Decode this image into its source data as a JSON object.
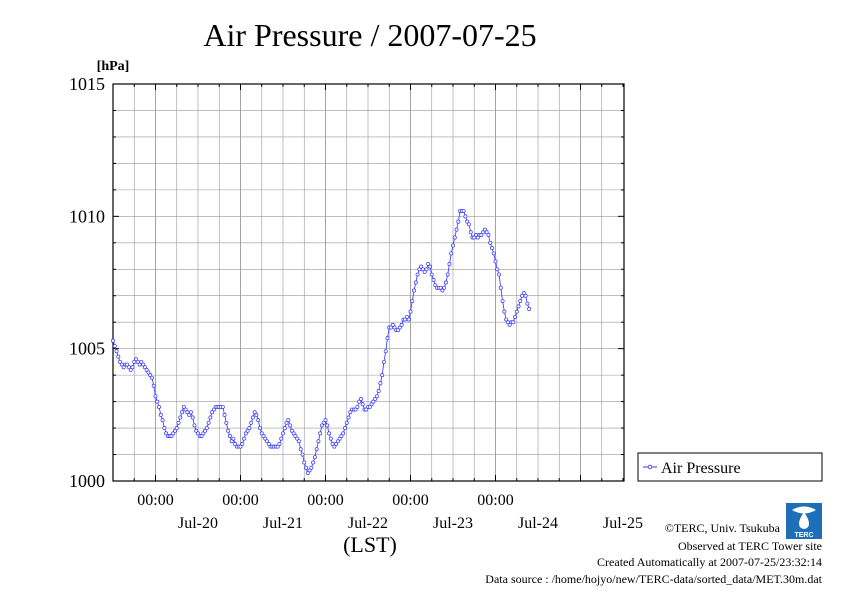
{
  "chart_data": {
    "type": "line",
    "title": "Air Pressure / 2007-07-25",
    "yunit": "[hPa]",
    "xlabel": "(LST)",
    "ylim": [
      1000,
      1015
    ],
    "y_ticks": [
      "1015",
      "1010",
      "1005",
      "1000"
    ],
    "x_tick_times": [
      "00:00",
      "00:00",
      "00:00",
      "00:00",
      "00:00"
    ],
    "x_day_labels": [
      "Jul-20",
      "Jul-21",
      "Jul-22",
      "Jul-23",
      "Jul-24",
      "Jul-25"
    ],
    "grid": true,
    "legend_position": "right",
    "series": [
      {
        "name": "Air Pressure",
        "color": "#3333ff",
        "x_start": "2007-07-19 12:00",
        "interval_minutes": 30,
        "values": [
          1005.3,
          1005.1,
          1004.9,
          1004.7,
          1004.5,
          1004.4,
          1004.3,
          1004.4,
          1004.4,
          1004.3,
          1004.2,
          1004.3,
          1004.5,
          1004.6,
          1004.5,
          1004.4,
          1004.5,
          1004.4,
          1004.3,
          1004.2,
          1004.1,
          1004.0,
          1003.9,
          1003.6,
          1003.2,
          1003.0,
          1002.8,
          1002.5,
          1002.3,
          1002.0,
          1001.8,
          1001.7,
          1001.7,
          1001.7,
          1001.8,
          1001.9,
          1002.0,
          1002.2,
          1002.4,
          1002.6,
          1002.8,
          1002.7,
          1002.6,
          1002.5,
          1002.6,
          1002.4,
          1002.1,
          1001.9,
          1001.8,
          1001.7,
          1001.7,
          1001.8,
          1001.9,
          1002.0,
          1002.2,
          1002.4,
          1002.6,
          1002.7,
          1002.8,
          1002.8,
          1002.8,
          1002.8,
          1002.8,
          1002.5,
          1002.2,
          1001.9,
          1001.7,
          1001.5,
          1001.6,
          1001.4,
          1001.3,
          1001.3,
          1001.3,
          1001.4,
          1001.6,
          1001.8,
          1001.9,
          1002.0,
          1002.2,
          1002.4,
          1002.6,
          1002.5,
          1002.3,
          1002.0,
          1001.8,
          1001.7,
          1001.6,
          1001.5,
          1001.4,
          1001.3,
          1001.3,
          1001.3,
          1001.3,
          1001.3,
          1001.4,
          1001.6,
          1001.8,
          1002.0,
          1002.2,
          1002.3,
          1002.1,
          1001.9,
          1001.8,
          1001.7,
          1001.6,
          1001.5,
          1001.2,
          1001.0,
          1000.7,
          1000.5,
          1000.3,
          1000.4,
          1000.5,
          1000.7,
          1000.9,
          1001.2,
          1001.5,
          1001.8,
          1002.1,
          1002.2,
          1002.3,
          1002.1,
          1001.8,
          1001.6,
          1001.4,
          1001.3,
          1001.4,
          1001.5,
          1001.6,
          1001.7,
          1001.8,
          1002.0,
          1002.2,
          1002.4,
          1002.6,
          1002.7,
          1002.7,
          1002.7,
          1002.8,
          1003.0,
          1003.1,
          1002.9,
          1002.7,
          1002.7,
          1002.8,
          1002.8,
          1002.9,
          1003.0,
          1003.1,
          1003.2,
          1003.4,
          1003.7,
          1004.0,
          1004.5,
          1004.9,
          1005.4,
          1005.8,
          1005.8,
          1005.9,
          1005.8,
          1005.7,
          1005.7,
          1005.8,
          1005.9,
          1006.1,
          1006.1,
          1006.2,
          1006.1,
          1006.4,
          1006.8,
          1007.2,
          1007.5,
          1007.8,
          1008.0,
          1008.1,
          1008.0,
          1007.9,
          1008.0,
          1008.2,
          1008.1,
          1007.8,
          1007.6,
          1007.4,
          1007.3,
          1007.3,
          1007.3,
          1007.2,
          1007.3,
          1007.5,
          1007.8,
          1008.2,
          1008.6,
          1008.9,
          1009.2,
          1009.5,
          1009.8,
          1010.2,
          1010.2,
          1010.2,
          1010.0,
          1009.8,
          1009.7,
          1009.4,
          1009.2,
          1009.2,
          1009.3,
          1009.2,
          1009.3,
          1009.3,
          1009.4,
          1009.5,
          1009.4,
          1009.3,
          1009.0,
          1008.8,
          1008.6,
          1008.3,
          1008.0,
          1007.8,
          1007.3,
          1006.8,
          1006.4,
          1006.1,
          1006.0,
          1005.9,
          1006.0,
          1006.0,
          1006.2,
          1006.4,
          1006.6,
          1006.8,
          1007.0,
          1007.1,
          1007.0,
          1006.7,
          1006.5
        ]
      }
    ]
  },
  "credits": {
    "copyright": "©TERC, Univ. Tsukuba",
    "observed": "Observed at TERC Tower site",
    "created": "Created Automatically at 2007-07-25/23:32:14",
    "source": "Data source : /home/hojyo/new/TERC-data/sorted_data/MET.30m.dat",
    "logo_text": "TERC"
  }
}
